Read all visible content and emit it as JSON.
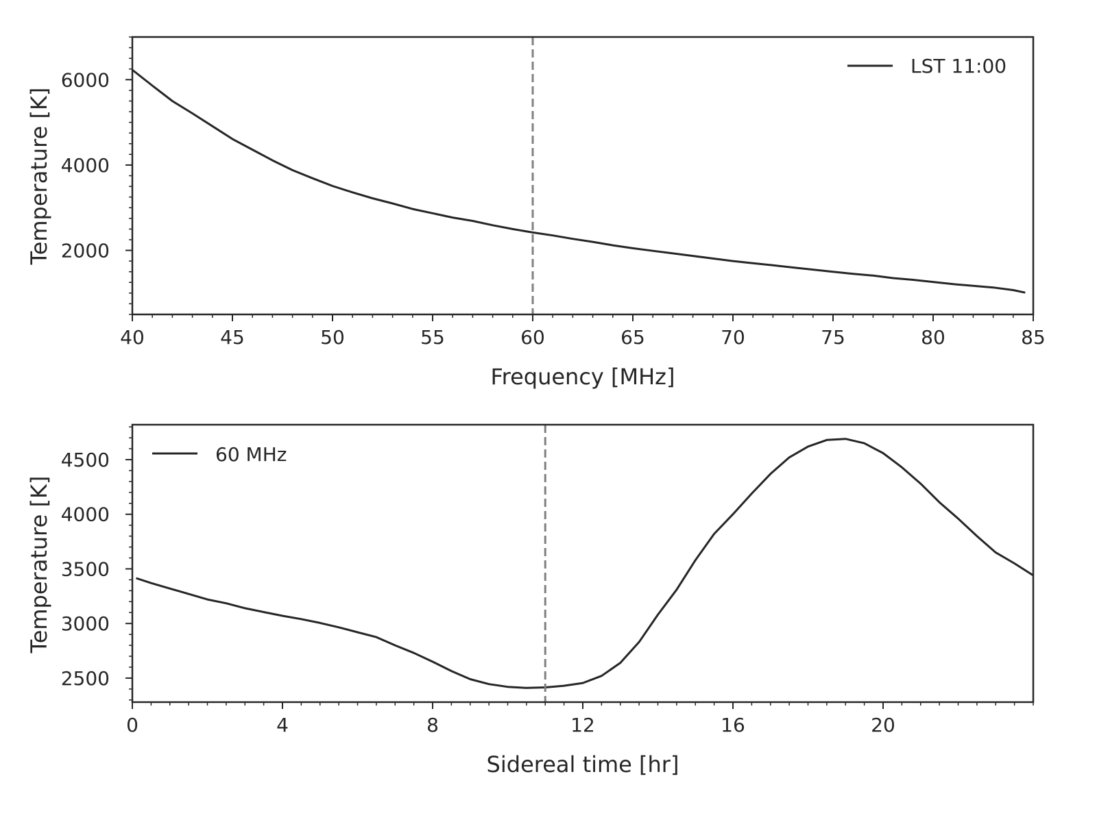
{
  "colors": {
    "line": "#262626",
    "vline": "#808080",
    "axes": "#262626",
    "background": "#ffffff"
  },
  "chart_data": [
    {
      "type": "line",
      "xlabel": "Frequency [MHz]",
      "ylabel": "Temperature [K]",
      "xlim": [
        40,
        85
      ],
      "ylim": [
        500,
        7000
      ],
      "xticks": [
        40,
        45,
        50,
        55,
        60,
        65,
        70,
        75,
        80,
        85
      ],
      "yticks": [
        2000,
        4000,
        6000
      ],
      "vline": 60,
      "legend": {
        "label": "LST 11:00",
        "location": "upper right"
      },
      "series": [
        {
          "name": "LST 11:00",
          "x": [
            40,
            41,
            42,
            43,
            44,
            45,
            46,
            47,
            48,
            49,
            50,
            51,
            52,
            53,
            54,
            55,
            56,
            57,
            58,
            59,
            60,
            61,
            62,
            63,
            64,
            65,
            66,
            67,
            68,
            69,
            70,
            71,
            72,
            73,
            74,
            75,
            76,
            77,
            78,
            79,
            80,
            81,
            82,
            83,
            84,
            84.6
          ],
          "y": [
            6230,
            5860,
            5500,
            5210,
            4910,
            4610,
            4360,
            4110,
            3880,
            3690,
            3510,
            3360,
            3220,
            3100,
            2970,
            2870,
            2770,
            2690,
            2590,
            2500,
            2420,
            2350,
            2270,
            2200,
            2120,
            2050,
            1990,
            1930,
            1870,
            1810,
            1750,
            1700,
            1650,
            1600,
            1550,
            1500,
            1450,
            1410,
            1350,
            1310,
            1260,
            1210,
            1170,
            1130,
            1070,
            1010
          ]
        }
      ]
    },
    {
      "type": "line",
      "xlabel": "Sidereal time [hr]",
      "ylabel": "Temperature [K]",
      "xlim": [
        0,
        24
      ],
      "ylim": [
        2280,
        4820
      ],
      "xticks": [
        0,
        4,
        8,
        12,
        16,
        20
      ],
      "yticks": [
        2500,
        3000,
        3500,
        4000,
        4500
      ],
      "vline": 11,
      "legend": {
        "label": "60 MHz",
        "location": "upper left"
      },
      "series": [
        {
          "name": "60 MHz",
          "x": [
            0.1,
            0.5,
            1,
            1.5,
            2,
            2.5,
            3,
            3.5,
            4,
            4.5,
            5,
            5.5,
            6,
            6.5,
            7,
            7.5,
            8,
            8.5,
            9,
            9.5,
            10,
            10.5,
            11,
            11.5,
            12,
            12.5,
            13,
            13.5,
            14,
            14.5,
            15,
            15.5,
            16,
            16.5,
            17,
            17.5,
            18,
            18.5,
            19,
            19.5,
            20,
            20.5,
            21,
            21.5,
            22,
            22.5,
            23,
            23.5,
            24
          ],
          "y": [
            3415,
            3370,
            3320,
            3270,
            3220,
            3185,
            3140,
            3105,
            3070,
            3040,
            3005,
            2965,
            2920,
            2875,
            2800,
            2730,
            2650,
            2565,
            2490,
            2445,
            2420,
            2410,
            2415,
            2430,
            2455,
            2520,
            2640,
            2830,
            3080,
            3310,
            3580,
            3820,
            4000,
            4190,
            4370,
            4520,
            4620,
            4680,
            4690,
            4650,
            4560,
            4430,
            4280,
            4110,
            3960,
            3800,
            3650,
            3550,
            3440
          ]
        }
      ]
    }
  ]
}
